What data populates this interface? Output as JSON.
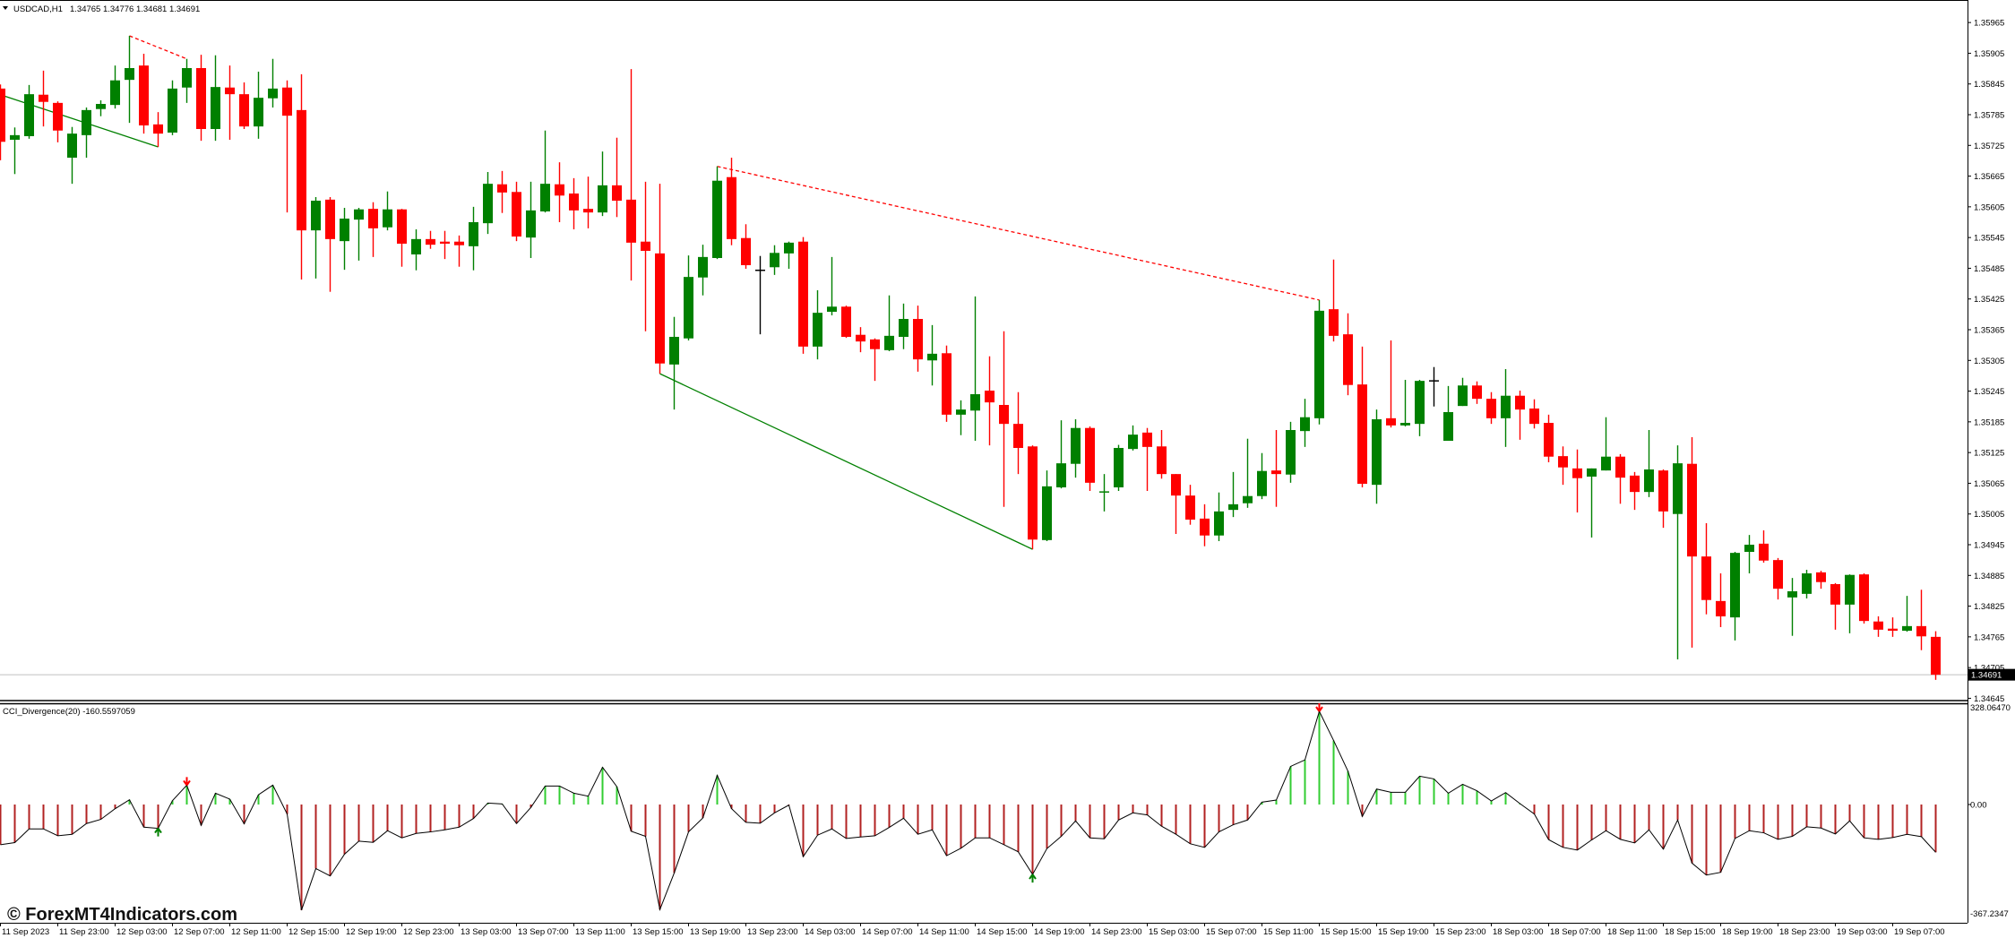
{
  "window": {
    "symbol": "USDCAD,H1",
    "ohlc": "1.34765 1.34776 1.34681 1.34691",
    "dropdown_icon": "triangle-down-icon"
  },
  "watermark": "© ForexMT4Indicators.com",
  "colors": {
    "bull": "#008000",
    "bear": "#ff0000",
    "doji": "#000000",
    "bid_line": "#c0c0c0",
    "hist_pos": "#32cd32",
    "hist_neg": "#b22222",
    "cci_line": "#000000"
  },
  "chart_data": [
    {
      "type": "candlestick",
      "title": "USDCAD,H1",
      "bid": "1.34691",
      "price_axis": {
        "ticks": [
          "1.35965",
          "1.35905",
          "1.35845",
          "1.35785",
          "1.35725",
          "1.35665",
          "1.35605",
          "1.35545",
          "1.35485",
          "1.35425",
          "1.35365",
          "1.35305",
          "1.35245",
          "1.35185",
          "1.35125",
          "1.35065",
          "1.35005",
          "1.34945",
          "1.34885",
          "1.34825",
          "1.34765",
          "1.34705",
          "1.34645"
        ]
      },
      "time_axis": {
        "labels_every_bars": 4,
        "labels": [
          "11 Sep 2023",
          "11 Sep 23:00",
          "12 Sep 03:00",
          "12 Sep 07:00",
          "12 Sep 11:00",
          "12 Sep 15:00",
          "12 Sep 19:00",
          "12 Sep 23:00",
          "13 Sep 03:00",
          "13 Sep 07:00",
          "13 Sep 11:00",
          "13 Sep 15:00",
          "13 Sep 19:00",
          "13 Sep 23:00",
          "14 Sep 03:00",
          "14 Sep 07:00",
          "14 Sep 11:00",
          "14 Sep 15:00",
          "14 Sep 19:00",
          "14 Sep 23:00",
          "15 Sep 03:00",
          "15 Sep 07:00",
          "15 Sep 11:00",
          "15 Sep 15:00",
          "15 Sep 19:00",
          "15 Sep 23:00",
          "18 Sep 03:00",
          "18 Sep 07:00",
          "18 Sep 11:00",
          "18 Sep 15:00",
          "18 Sep 19:00",
          "18 Sep 23:00",
          "19 Sep 03:00",
          "19 Sep 07:00"
        ]
      },
      "candles_ohlc": [
        [
          1.35836,
          1.35844,
          1.35696,
          1.35732
        ],
        [
          1.35736,
          1.3576,
          1.35669,
          1.35745
        ],
        [
          1.35743,
          1.35843,
          1.35738,
          1.35825
        ],
        [
          1.35824,
          1.35871,
          1.35762,
          1.3581
        ],
        [
          1.35808,
          1.35811,
          1.35731,
          1.35754
        ],
        [
          1.35701,
          1.35761,
          1.3565,
          1.35748
        ],
        [
          1.35745,
          1.35799,
          1.35701,
          1.35794
        ],
        [
          1.35796,
          1.35813,
          1.35782,
          1.35806
        ],
        [
          1.35804,
          1.35881,
          1.35797,
          1.35852
        ],
        [
          1.35853,
          1.35939,
          1.35769,
          1.35876
        ],
        [
          1.35881,
          1.35904,
          1.35748,
          1.35764
        ],
        [
          1.35766,
          1.3579,
          1.35722,
          1.35748
        ],
        [
          1.3575,
          1.35852,
          1.35745,
          1.35836
        ],
        [
          1.35838,
          1.35894,
          1.35808,
          1.35876
        ],
        [
          1.35876,
          1.35902,
          1.35734,
          1.35757
        ],
        [
          1.35757,
          1.35901,
          1.35734,
          1.35839
        ],
        [
          1.35838,
          1.35881,
          1.35736,
          1.35825
        ],
        [
          1.35825,
          1.35848,
          1.35757,
          1.35762
        ],
        [
          1.35762,
          1.35869,
          1.35738,
          1.35818
        ],
        [
          1.35817,
          1.35894,
          1.35799,
          1.35836
        ],
        [
          1.35838,
          1.35852,
          1.35594,
          1.35783
        ],
        [
          1.35794,
          1.35864,
          1.35463,
          1.35559
        ],
        [
          1.35559,
          1.35624,
          1.35465,
          1.35617
        ],
        [
          1.35619,
          1.35624,
          1.35439,
          1.35542
        ],
        [
          1.35538,
          1.35603,
          1.35482,
          1.35582
        ],
        [
          1.3558,
          1.35603,
          1.355,
          1.356
        ],
        [
          1.35601,
          1.35614,
          1.35507,
          1.35563
        ],
        [
          1.35565,
          1.35635,
          1.35559,
          1.356
        ],
        [
          1.356,
          1.35601,
          1.35488,
          1.35533
        ],
        [
          1.35512,
          1.35561,
          1.35481,
          1.35542
        ],
        [
          1.35542,
          1.35558,
          1.35523,
          1.35531
        ],
        [
          1.35537,
          1.35558,
          1.35503,
          1.35533
        ],
        [
          1.35537,
          1.35549,
          1.35488,
          1.3553
        ],
        [
          1.35528,
          1.35605,
          1.35481,
          1.35575
        ],
        [
          1.35573,
          1.35673,
          1.35552,
          1.3565
        ],
        [
          1.35649,
          1.35675,
          1.35593,
          1.35633
        ],
        [
          1.35634,
          1.35654,
          1.35538,
          1.35547
        ],
        [
          1.35545,
          1.35654,
          1.35505,
          1.35598
        ],
        [
          1.35596,
          1.35754,
          1.35594,
          1.3565
        ],
        [
          1.35649,
          1.35692,
          1.35575,
          1.35627
        ],
        [
          1.35631,
          1.35661,
          1.35561,
          1.35598
        ],
        [
          1.35601,
          1.35664,
          1.35563,
          1.35594
        ],
        [
          1.35594,
          1.35713,
          1.35587,
          1.35647
        ],
        [
          1.35647,
          1.3574,
          1.35585,
          1.35617
        ],
        [
          1.35619,
          1.35874,
          1.35461,
          1.35535
        ],
        [
          1.35537,
          1.35654,
          1.35362,
          1.35519
        ],
        [
          1.35514,
          1.3565,
          1.35279,
          1.35299
        ],
        [
          1.35297,
          1.3539,
          1.35209,
          1.35351
        ],
        [
          1.35348,
          1.3551,
          1.35344,
          1.35468
        ],
        [
          1.35467,
          1.35531,
          1.35432,
          1.35507
        ],
        [
          1.35505,
          1.35684,
          1.35503,
          1.35656
        ],
        [
          1.35663,
          1.35701,
          1.3553,
          1.35542
        ],
        [
          1.35544,
          1.35571,
          1.35484,
          1.35491
        ],
        [
          1.35481,
          1.35509,
          1.35356,
          1.35481
        ],
        [
          1.35487,
          1.3553,
          1.35472,
          1.35515
        ],
        [
          1.35514,
          1.35537,
          1.35484,
          1.35535
        ],
        [
          1.35537,
          1.35546,
          1.35318,
          1.35332
        ],
        [
          1.35332,
          1.35442,
          1.35307,
          1.35398
        ],
        [
          1.354,
          1.35507,
          1.35393,
          1.3541
        ],
        [
          1.3541,
          1.35412,
          1.35349,
          1.35351
        ],
        [
          1.35355,
          1.3537,
          1.35321,
          1.35342
        ],
        [
          1.35346,
          1.35348,
          1.35265,
          1.35327
        ],
        [
          1.35325,
          1.35432,
          1.35323,
          1.35353
        ],
        [
          1.35351,
          1.35416,
          1.35327,
          1.35386
        ],
        [
          1.35386,
          1.35412,
          1.35283,
          1.35307
        ],
        [
          1.35305,
          1.35374,
          1.35256,
          1.35318
        ],
        [
          1.35319,
          1.35334,
          1.35185,
          1.35199
        ],
        [
          1.35199,
          1.35227,
          1.35159,
          1.35209
        ],
        [
          1.35207,
          1.3543,
          1.35148,
          1.35239
        ],
        [
          1.35246,
          1.35313,
          1.35139,
          1.35223
        ],
        [
          1.35218,
          1.35362,
          1.35019,
          1.35181
        ],
        [
          1.35181,
          1.35243,
          1.35083,
          1.35134
        ],
        [
          1.35137,
          1.35139,
          1.34936,
          1.34955
        ],
        [
          1.34954,
          1.3509,
          1.34952,
          1.35059
        ],
        [
          1.35057,
          1.35188,
          1.35055,
          1.35104
        ],
        [
          1.35103,
          1.3519,
          1.35076,
          1.35173
        ],
        [
          1.35173,
          1.35176,
          1.3505,
          1.35066
        ],
        [
          1.35047,
          1.35083,
          1.3501,
          1.35048
        ],
        [
          1.35057,
          1.3514,
          1.3505,
          1.35134
        ],
        [
          1.35132,
          1.35178,
          1.35129,
          1.3516
        ],
        [
          1.35164,
          1.35173,
          1.3505,
          1.35136
        ],
        [
          1.35137,
          1.35169,
          1.35074,
          1.35083
        ],
        [
          1.35083,
          1.35083,
          1.34966,
          1.35041
        ],
        [
          1.35041,
          1.35062,
          1.34984,
          1.34994
        ],
        [
          1.34996,
          1.35024,
          1.34942,
          1.34963
        ],
        [
          1.34963,
          1.35047,
          1.34952,
          1.3501
        ],
        [
          1.35013,
          1.35087,
          1.34999,
          1.35024
        ],
        [
          1.35026,
          1.35152,
          1.35017,
          1.3504
        ],
        [
          1.3504,
          1.35124,
          1.35034,
          1.35089
        ],
        [
          1.3509,
          1.35169,
          1.35019,
          1.35083
        ],
        [
          1.35082,
          1.35185,
          1.35066,
          1.35169
        ],
        [
          1.35167,
          1.3523,
          1.35136,
          1.35194
        ],
        [
          1.35192,
          1.35423,
          1.3518,
          1.35402
        ],
        [
          1.35405,
          1.35502,
          1.35342,
          1.35353
        ],
        [
          1.35356,
          1.35397,
          1.35237,
          1.35257
        ],
        [
          1.35258,
          1.35332,
          1.35057,
          1.35064
        ],
        [
          1.35062,
          1.35209,
          1.35025,
          1.3519
        ],
        [
          1.35192,
          1.35344,
          1.35174,
          1.35178
        ],
        [
          1.35178,
          1.35267,
          1.35176,
          1.35183
        ],
        [
          1.35181,
          1.35267,
          1.35157,
          1.35265
        ],
        [
          1.35265,
          1.35292,
          1.35215,
          1.35265
        ],
        [
          1.35148,
          1.35255,
          1.35148,
          1.35204
        ],
        [
          1.35216,
          1.35271,
          1.35216,
          1.35256
        ],
        [
          1.35256,
          1.35264,
          1.3522,
          1.3523
        ],
        [
          1.3523,
          1.35243,
          1.35181,
          1.35192
        ],
        [
          1.35192,
          1.35288,
          1.35136,
          1.35236
        ],
        [
          1.35236,
          1.35246,
          1.3515,
          1.35209
        ],
        [
          1.35211,
          1.35229,
          1.35172,
          1.35181
        ],
        [
          1.35183,
          1.35199,
          1.35106,
          1.35117
        ],
        [
          1.35118,
          1.35137,
          1.35062,
          1.35096
        ],
        [
          1.35094,
          1.35131,
          1.35008,
          1.35075
        ],
        [
          1.35078,
          1.35094,
          1.34959,
          1.35094
        ],
        [
          1.3509,
          1.35194,
          1.3509,
          1.35117
        ],
        [
          1.35117,
          1.35122,
          1.35025,
          1.35076
        ],
        [
          1.3508,
          1.35087,
          1.35013,
          1.35048
        ],
        [
          1.35048,
          1.35169,
          1.35038,
          1.35092
        ],
        [
          1.3509,
          1.35092,
          1.34978,
          1.3501
        ],
        [
          1.35005,
          1.35139,
          1.34721,
          1.35104
        ],
        [
          1.35103,
          1.35155,
          1.34744,
          1.34922
        ],
        [
          1.34922,
          1.34987,
          1.34809,
          1.34837
        ],
        [
          1.34835,
          1.34889,
          1.34784,
          1.34805
        ],
        [
          1.34803,
          1.34931,
          1.34758,
          1.34929
        ],
        [
          1.34931,
          1.34964,
          1.34889,
          1.34945
        ],
        [
          1.34947,
          1.34973,
          1.3491,
          1.34914
        ],
        [
          1.34915,
          1.34919,
          1.34838,
          1.34859
        ],
        [
          1.34842,
          1.3488,
          1.34767,
          1.34854
        ],
        [
          1.34849,
          1.34896,
          1.3484,
          1.34889
        ],
        [
          1.34891,
          1.34894,
          1.34859,
          1.34872
        ],
        [
          1.34868,
          1.3487,
          1.34779,
          1.34828
        ],
        [
          1.34828,
          1.34887,
          1.34772,
          1.34886
        ],
        [
          1.34887,
          1.34889,
          1.34791,
          1.34796
        ],
        [
          1.34795,
          1.34805,
          1.34765,
          1.34779
        ],
        [
          1.34781,
          1.34803,
          1.34765,
          1.34777
        ],
        [
          1.34777,
          1.34845,
          1.34775,
          1.34786
        ],
        [
          1.34786,
          1.34857,
          1.34739,
          1.34766
        ],
        [
          1.34765,
          1.34776,
          1.34681,
          1.34691
        ]
      ],
      "divergence_lines": [
        {
          "from_bar": 9,
          "from_price": 1.35939,
          "to_bar": 13,
          "to_price": 1.35894,
          "color": "#ff0000",
          "style": "dotted"
        },
        {
          "from_bar": 0,
          "from_price": 1.35824,
          "to_bar": 11,
          "to_price": 1.35722,
          "color": "#008000",
          "style": "solid"
        },
        {
          "from_bar": 50,
          "from_price": 1.35684,
          "to_bar": 92,
          "to_price": 1.35423,
          "color": "#ff0000",
          "style": "dotted"
        },
        {
          "from_bar": 46,
          "from_price": 1.35279,
          "to_bar": 72,
          "to_price": 1.34936,
          "color": "#008000",
          "style": "solid"
        }
      ]
    },
    {
      "type": "bar+line",
      "title": "CCI_Divergence(20) -160.5597059",
      "ylim": [
        -367.2347,
        328.0647
      ],
      "y_axis_labels": [
        "328.06470",
        "0.00",
        "-367.2347"
      ],
      "values": [
        -135,
        -128,
        -82,
        -82,
        -105,
        -100,
        -64,
        -50,
        -14,
        16,
        -76,
        -80,
        13,
        65,
        -70,
        38,
        18,
        -65,
        33,
        65,
        -32,
        -355,
        -215,
        -240,
        -167,
        -123,
        -127,
        -88,
        -112,
        -97,
        -92,
        -85,
        -76,
        -47,
        5,
        2,
        -64,
        -10,
        62,
        62,
        38,
        28,
        125,
        60,
        -90,
        -107,
        -353,
        -230,
        -92,
        -45,
        98,
        -14,
        -60,
        -63,
        -28,
        -2,
        -175,
        -103,
        -82,
        -114,
        -109,
        -105,
        -77,
        -46,
        -100,
        -85,
        -172,
        -147,
        -112,
        -112,
        -135,
        -159,
        -235,
        -148,
        -107,
        -55,
        -112,
        -115,
        -52,
        -28,
        -35,
        -73,
        -100,
        -132,
        -144,
        -92,
        -68,
        -52,
        8,
        15,
        128,
        150,
        313,
        215,
        112,
        -40,
        52,
        41,
        41,
        95,
        86,
        38,
        68,
        46,
        12,
        40,
        3,
        -32,
        -118,
        -144,
        -153,
        -119,
        -88,
        -117,
        -129,
        -85,
        -150,
        -52,
        -197,
        -237,
        -228,
        -114,
        -88,
        -95,
        -117,
        -107,
        -75,
        -79,
        -99,
        -55,
        -112,
        -117,
        -111,
        -100,
        -108,
        -160.56
      ],
      "signals": [
        {
          "bar": 11,
          "type": "buy-arrow",
          "color": "#008000"
        },
        {
          "bar": 13,
          "type": "sell-arrow",
          "color": "#ff0000"
        },
        {
          "bar": 72,
          "type": "buy-arrow",
          "color": "#008000"
        },
        {
          "bar": 92,
          "type": "sell-arrow",
          "color": "#ff0000"
        }
      ]
    }
  ]
}
